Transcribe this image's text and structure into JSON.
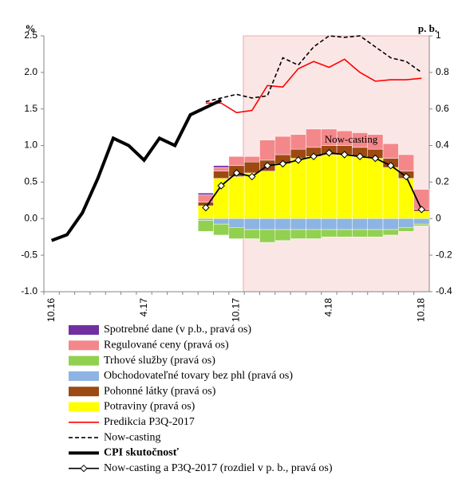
{
  "chart_data": {
    "type": "combo",
    "y_label": "%",
    "y2_label": "p. b.",
    "annotation": "Now-casting",
    "categories": [
      "10.16",
      null,
      null,
      null,
      null,
      null,
      "4.17",
      null,
      null,
      null,
      null,
      null,
      "10.17",
      null,
      null,
      null,
      null,
      null,
      "4.18",
      null,
      null,
      null,
      null,
      null,
      "10.18"
    ],
    "ylim": [
      -1.0,
      2.5
    ],
    "yticks": [
      {
        "value": -1.0,
        "label": "-1.0"
      },
      {
        "value": -0.5,
        "label": "-0.5"
      },
      {
        "value": 0.0,
        "label": "0.0"
      },
      {
        "value": 0.5,
        "label": "0.5"
      },
      {
        "value": 1.0,
        "label": "1.0"
      },
      {
        "value": 1.5,
        "label": "1.5"
      },
      {
        "value": 2.0,
        "label": "2.0"
      },
      {
        "value": 2.5,
        "label": "2.5"
      }
    ],
    "y2lim": [
      -0.4,
      1
    ],
    "y2ticks": [
      -0.4,
      -0.2,
      0,
      0.2,
      0.4,
      0.6,
      0.8,
      1
    ],
    "series": [
      {
        "name": "Spotrebné dane (v p.b., pravá os)",
        "type": "bar",
        "axis": "y2",
        "color": "#7030a0",
        "values": [
          null,
          null,
          null,
          null,
          null,
          null,
          null,
          null,
          null,
          null,
          0.01,
          0.01,
          0,
          0,
          0,
          0,
          0,
          0,
          0,
          0,
          0,
          0,
          0,
          0,
          0
        ]
      },
      {
        "name": "Regulované ceny (pravá os)",
        "type": "bar",
        "axis": "y2",
        "color": "#f4878a",
        "values": [
          null,
          null,
          null,
          null,
          null,
          null,
          null,
          null,
          null,
          null,
          0.04,
          0.02,
          0.05,
          0.03,
          0.11,
          0.1,
          0.08,
          0.1,
          0.09,
          0.08,
          0.08,
          0.08,
          0.08,
          0.09,
          0.11
        ]
      },
      {
        "name": "Trhové služby (pravá os)",
        "type": "bar",
        "axis": "y2",
        "color": "#92d050",
        "values": [
          null,
          null,
          null,
          null,
          null,
          null,
          null,
          null,
          null,
          null,
          -0.06,
          -0.06,
          -0.06,
          -0.05,
          -0.07,
          -0.06,
          -0.05,
          -0.05,
          -0.04,
          -0.04,
          -0.04,
          -0.04,
          -0.03,
          -0.02,
          -0.01
        ]
      },
      {
        "name": "Obchodovateľné tovary bez phl (pravá os)",
        "type": "bar",
        "axis": "y2",
        "color": "#8db4e2",
        "values": [
          null,
          null,
          null,
          null,
          null,
          null,
          null,
          null,
          null,
          null,
          -0.01,
          -0.03,
          -0.05,
          -0.06,
          -0.06,
          -0.06,
          -0.06,
          -0.06,
          -0.06,
          -0.06,
          -0.06,
          -0.06,
          -0.06,
          -0.05,
          -0.03
        ]
      },
      {
        "name": "Pohonné látky (pravá os)",
        "type": "bar",
        "axis": "y2",
        "color": "#9c4a12",
        "values": [
          null,
          null,
          null,
          null,
          null,
          null,
          null,
          null,
          null,
          null,
          0.02,
          0.04,
          0.06,
          0.06,
          0.06,
          0.05,
          0.05,
          0.05,
          0.05,
          0.05,
          0.05,
          0.05,
          0.05,
          0.04,
          0.01
        ]
      },
      {
        "name": "Potraviny (pravá os)",
        "type": "bar",
        "axis": "y2",
        "color": "#ffff00",
        "values": [
          null,
          null,
          null,
          null,
          null,
          null,
          null,
          null,
          null,
          null,
          0.07,
          0.22,
          0.23,
          0.25,
          0.26,
          0.3,
          0.33,
          0.34,
          0.35,
          0.35,
          0.34,
          0.33,
          0.28,
          0.22,
          0.04
        ]
      },
      {
        "name": "Predikcia P3Q-2017",
        "type": "line",
        "style": "solid",
        "color": "#ff0000",
        "values": [
          null,
          null,
          null,
          null,
          null,
          null,
          null,
          null,
          null,
          null,
          1.58,
          1.58,
          1.45,
          1.48,
          1.82,
          1.8,
          2.05,
          2.15,
          2.07,
          2.18,
          2.0,
          1.88,
          1.9,
          1.9,
          1.92
        ]
      },
      {
        "name": "Now-casting",
        "type": "line",
        "style": "dashed",
        "color": "#000000",
        "values": [
          null,
          null,
          null,
          null,
          null,
          null,
          null,
          null,
          null,
          null,
          1.6,
          1.65,
          1.7,
          1.65,
          1.68,
          2.2,
          2.1,
          2.35,
          2.5,
          2.48,
          2.5,
          2.35,
          2.2,
          2.15,
          2.0
        ]
      },
      {
        "name": "CPI skutočnosť",
        "type": "line",
        "style": "thick",
        "color": "#000000",
        "values": [
          -0.3,
          -0.22,
          0.08,
          0.55,
          1.1,
          1.0,
          0.8,
          1.1,
          1.0,
          1.42,
          1.52,
          1.62,
          null,
          null,
          null,
          null,
          null,
          null,
          null,
          null,
          null,
          null,
          null,
          null,
          null
        ]
      },
      {
        "name": "Now-casting a P3Q-2017 (rozdiel v p. b., pravá os)",
        "type": "line",
        "style": "diamond",
        "axis": "y2",
        "color": "#000000",
        "values": [
          null,
          null,
          null,
          null,
          null,
          null,
          null,
          null,
          null,
          null,
          0.06,
          0.18,
          0.25,
          0.23,
          0.29,
          0.3,
          0.32,
          0.34,
          0.36,
          0.35,
          0.34,
          0.33,
          0.29,
          0.23,
          0.05
        ]
      }
    ]
  }
}
